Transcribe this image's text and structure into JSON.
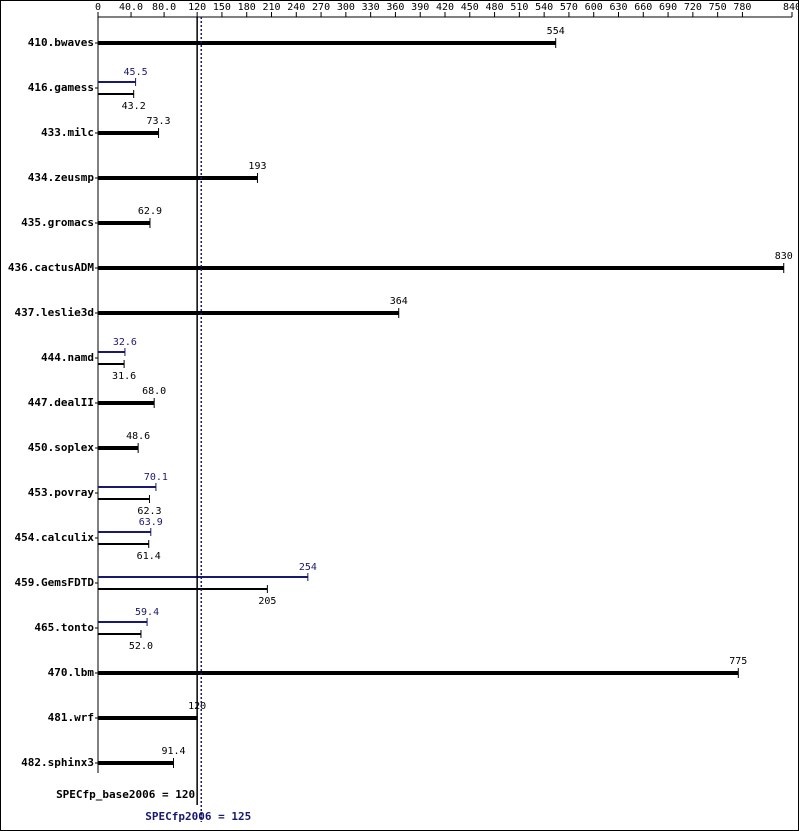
{
  "chart_data": {
    "type": "bar",
    "orientation": "horizontal",
    "categories": [
      "410.bwaves",
      "416.gamess",
      "433.milc",
      "434.zeusmp",
      "435.gromacs",
      "436.cactusADM",
      "437.leslie3d",
      "444.namd",
      "447.dealII",
      "450.soplex",
      "453.povray",
      "454.calculix",
      "459.GemsFDTD",
      "465.tonto",
      "470.lbm",
      "481.wrf",
      "482.sphinx3"
    ],
    "series": [
      {
        "color": "#000000",
        "values": [
          554,
          43.2,
          73.3,
          193,
          62.9,
          830,
          364,
          31.6,
          68,
          48.6,
          62.3,
          61.4,
          205,
          52,
          775,
          120,
          91.4
        ],
        "value_labels": [
          "554",
          "43.2",
          "73.3",
          "193",
          "62.9",
          "830",
          "364",
          "31.6",
          "68.0",
          "48.6",
          "62.3",
          "61.4",
          "205",
          "52.0",
          "775",
          "120",
          "91.4"
        ]
      },
      {
        "color": "#191970",
        "values": [
          null,
          45.5,
          null,
          null,
          null,
          null,
          null,
          32.6,
          null,
          null,
          70.1,
          63.9,
          254,
          59.4,
          null,
          null,
          null
        ]
      }
    ],
    "xlim": [
      0,
      840
    ],
    "xticks": [
      0,
      {
        "value": 40,
        "label": "40.0"
      },
      {
        "value": 80,
        "label": "80.0"
      },
      120,
      150,
      180,
      210,
      240,
      270,
      300,
      330,
      360,
      390,
      420,
      450,
      480,
      510,
      540,
      570,
      600,
      630,
      660,
      690,
      720,
      750,
      780,
      840
    ],
    "reference_lines": [
      {
        "label": "SPECfp_base2006 = 120",
        "value": 120,
        "color": "#000000",
        "style": "solid"
      },
      {
        "label": "SPECfp2006 = 125",
        "value": 125,
        "color": "#191970",
        "style": "dotted"
      }
    ]
  }
}
